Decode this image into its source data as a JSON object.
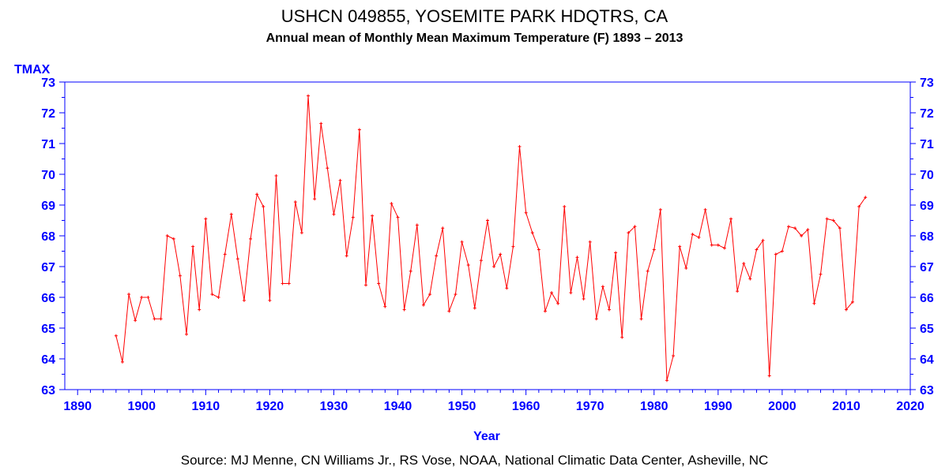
{
  "chart_data": {
    "type": "line",
    "title": "USHCN 049855, YOSEMITE PARK HDQTRS, CA",
    "subtitle": "Annual mean of Monthly Mean Maximum Temperature (F) 1893 – 2013",
    "ylabel": "TMAX",
    "xlabel": "Year",
    "source": "Source: MJ Menne, CN Williams Jr., RS Vose, NOAA, National Climatic Data Center, Asheville, NC",
    "xlim": [
      1888,
      2020
    ],
    "ylim": [
      63,
      73
    ],
    "x_ticks": [
      1890,
      1900,
      1910,
      1920,
      1930,
      1940,
      1950,
      1960,
      1970,
      1980,
      1990,
      2000,
      2010,
      2020
    ],
    "y_ticks": [
      63,
      64,
      65,
      66,
      67,
      68,
      69,
      70,
      71,
      72,
      73
    ],
    "grid": false,
    "colors": {
      "line": "#ff0000",
      "axis": "#0000ff",
      "text": "#000000"
    },
    "series": [
      {
        "x": [
          1896,
          1897,
          1898,
          1899,
          1900,
          1901,
          1902,
          1903,
          1904,
          1905,
          1906,
          1907,
          1908,
          1909,
          1910,
          1911,
          1912,
          1913,
          1914,
          1915,
          1916,
          1917,
          1918,
          1919,
          1920,
          1921,
          1922,
          1923,
          1924,
          1925,
          1926,
          1927,
          1928,
          1929,
          1930,
          1931,
          1932,
          1933,
          1934,
          1935,
          1936,
          1937,
          1938,
          1939,
          1940,
          1941,
          1942,
          1943,
          1944,
          1945,
          1946,
          1947,
          1948,
          1949,
          1950,
          1951,
          1952,
          1953,
          1954,
          1955,
          1956,
          1957,
          1958,
          1959,
          1960,
          1961,
          1962,
          1963,
          1964,
          1965,
          1966,
          1967,
          1968,
          1969,
          1970,
          1971,
          1972,
          1973,
          1974,
          1975,
          1976,
          1977,
          1978,
          1979,
          1980,
          1981,
          1982,
          1983,
          1984,
          1985,
          1986,
          1987,
          1988,
          1989,
          1990,
          1991,
          1992,
          1993,
          1994,
          1995,
          1996,
          1997,
          1998,
          1999,
          2000,
          2001,
          2002,
          2003,
          2004,
          2005,
          2006,
          2007,
          2008,
          2009,
          2010,
          2011,
          2012,
          2013
        ],
        "values": [
          64.75,
          63.9,
          66.1,
          65.25,
          66.0,
          66.0,
          65.3,
          65.3,
          68.0,
          67.9,
          66.7,
          64.8,
          67.65,
          65.6,
          68.55,
          66.1,
          66.0,
          67.4,
          68.7,
          67.25,
          65.9,
          67.9,
          69.35,
          68.95,
          65.9,
          69.95,
          66.45,
          66.45,
          69.1,
          68.1,
          72.55,
          69.2,
          71.65,
          70.2,
          68.7,
          69.8,
          67.35,
          68.6,
          71.45,
          66.4,
          68.65,
          66.45,
          65.7,
          69.05,
          68.6,
          65.6,
          66.85,
          68.35,
          65.75,
          66.1,
          67.35,
          68.25,
          65.55,
          66.1,
          67.8,
          67.05,
          65.65,
          67.2,
          68.5,
          67.0,
          67.4,
          66.3,
          67.65,
          70.9,
          68.75,
          68.1,
          67.55,
          65.55,
          66.15,
          65.8,
          68.95,
          66.15,
          67.3,
          65.95,
          67.8,
          65.3,
          66.35,
          65.6,
          67.45,
          64.7,
          68.1,
          68.3,
          65.3,
          66.85,
          67.55,
          68.85,
          63.3,
          64.1,
          67.65,
          66.95,
          68.05,
          67.95,
          68.85,
          67.7,
          67.7,
          67.6,
          68.55,
          66.2,
          67.1,
          66.6,
          67.55,
          67.85,
          63.45,
          67.4,
          67.5,
          68.3,
          68.25,
          68.0,
          68.2,
          65.8,
          66.75,
          68.55,
          68.5,
          68.25,
          65.6,
          65.85,
          68.95,
          69.25
        ]
      }
    ]
  }
}
